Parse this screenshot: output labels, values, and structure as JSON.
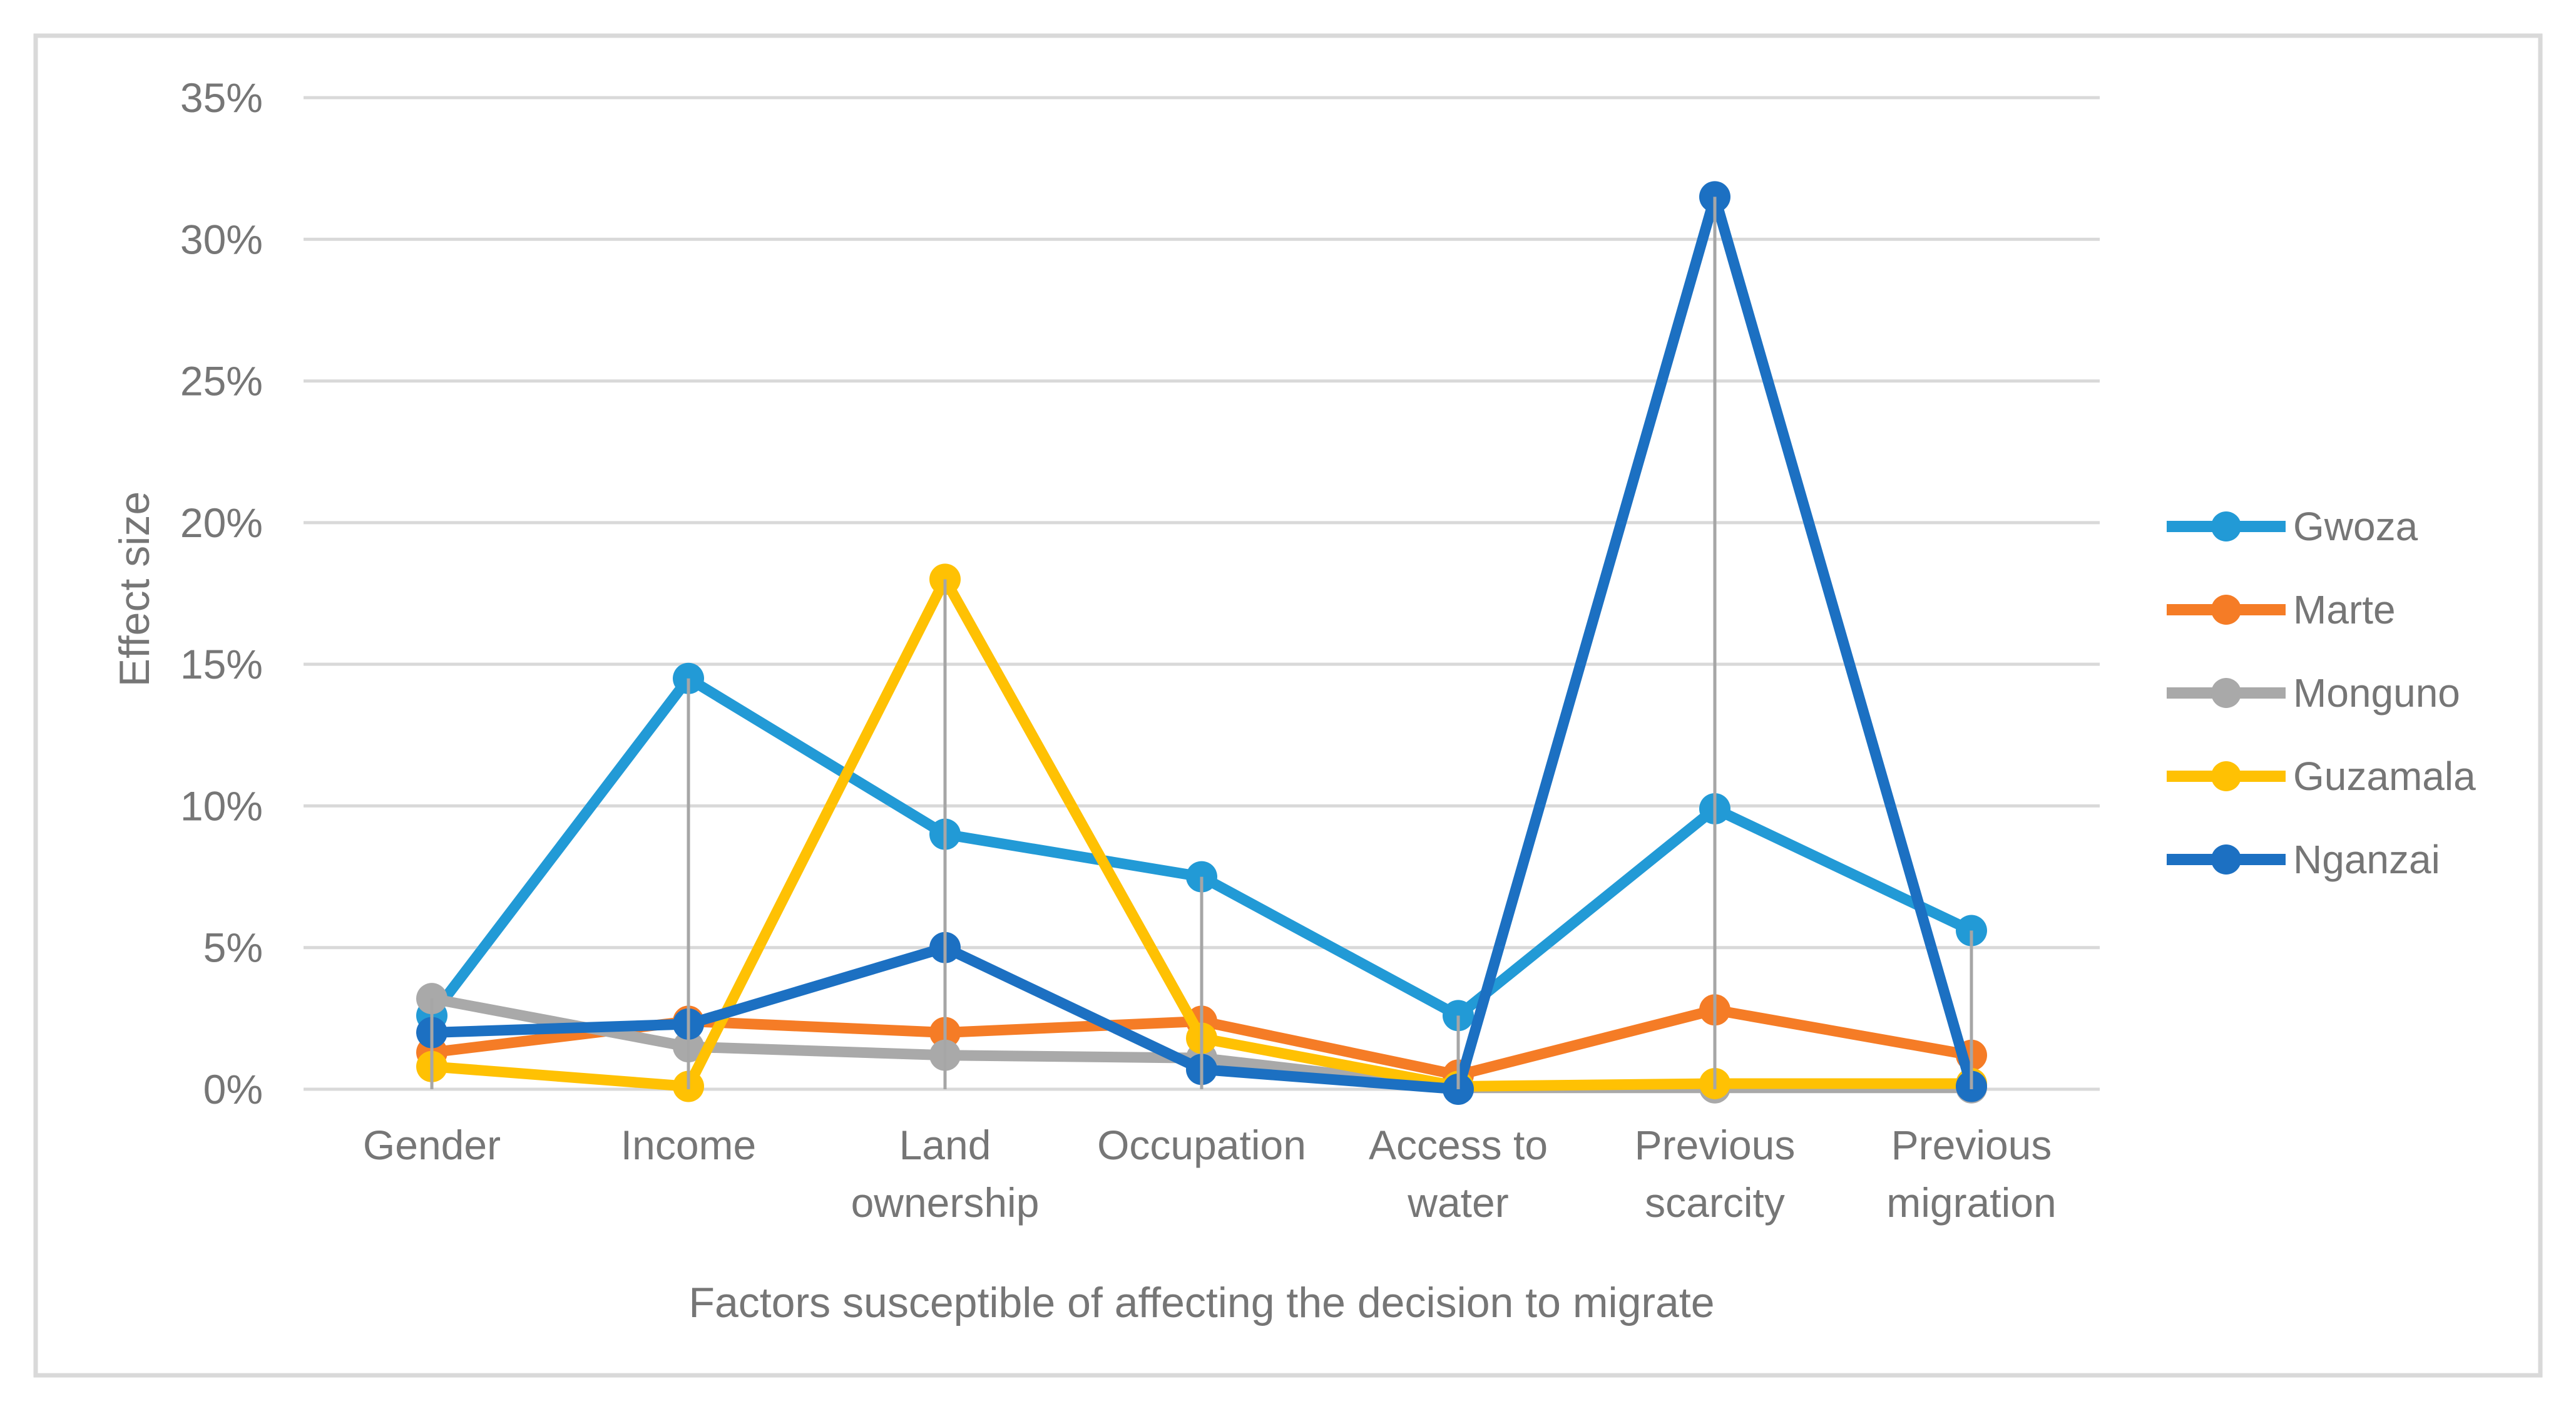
{
  "figure": {
    "border_color": "#D9D9D9",
    "background_color": "#FFFFFF",
    "text_color": "#767676",
    "gridline_color": "#D9D9D9",
    "drop_line_color": "#A6A6A6"
  },
  "chart_data": {
    "type": "line",
    "title": "",
    "xlabel": "Factors susceptible of affecting the decision to migrate",
    "ylabel": "Effect size",
    "ylim": [
      0,
      35
    ],
    "y_tick_step": 5,
    "y_tick_labels": [
      "0%",
      "5%",
      "10%",
      "15%",
      "20%",
      "25%",
      "30%",
      "35%"
    ],
    "grid": true,
    "drop_lines": true,
    "legend_position": "right",
    "categories": [
      "Gender",
      "Income",
      "Land ownership",
      "Occupation",
      "Access to water",
      "Previous scarcity",
      "Previous migration"
    ],
    "category_label_lines": [
      [
        "Gender"
      ],
      [
        "Income"
      ],
      [
        "Land",
        "ownership"
      ],
      [
        "Occupation"
      ],
      [
        "Access to",
        "water"
      ],
      [
        "Previous",
        "scarcity"
      ],
      [
        "Previous",
        "migration"
      ]
    ],
    "series": [
      {
        "name": "Gwoza",
        "color": "#229AD6",
        "values": [
          2.6,
          14.5,
          9.0,
          7.5,
          2.6,
          9.9,
          5.6
        ]
      },
      {
        "name": "Marte",
        "color": "#F57C26",
        "values": [
          1.3,
          2.4,
          2.0,
          2.4,
          0.5,
          2.8,
          1.2
        ]
      },
      {
        "name": "Monguno",
        "color": "#A9A9A9",
        "values": [
          3.2,
          1.5,
          1.2,
          1.1,
          0.05,
          0.05,
          0.05
        ]
      },
      {
        "name": "Guzamala",
        "color": "#FFC103",
        "values": [
          0.8,
          0.1,
          18.0,
          1.8,
          0.1,
          0.2,
          0.2
        ]
      },
      {
        "name": "Nganzai",
        "color": "#1C70C2",
        "values": [
          2.0,
          2.3,
          5.0,
          0.7,
          0.0,
          31.5,
          0.1
        ]
      }
    ]
  }
}
